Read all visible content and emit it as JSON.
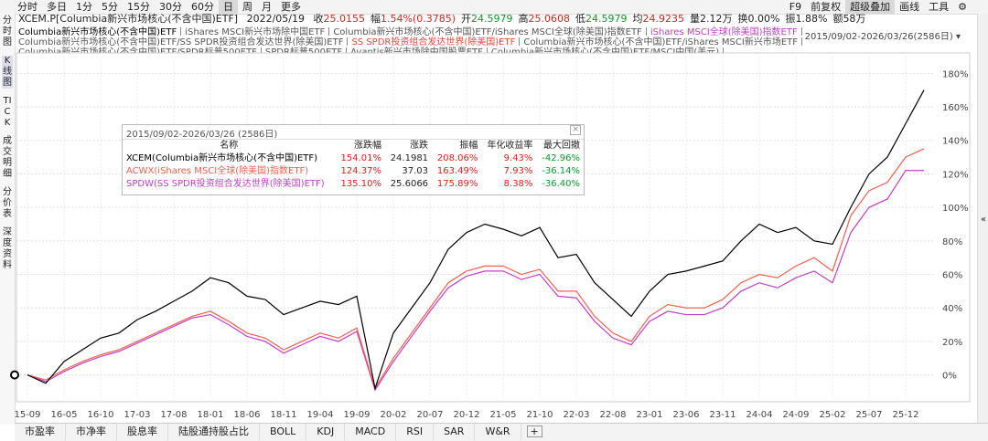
{
  "toolbar": {
    "periods": [
      "分时",
      "多日",
      "1分",
      "5分",
      "15分",
      "30分",
      "60分",
      "日",
      "周",
      "月",
      "更多"
    ],
    "active": 7,
    "tools": [
      "F9",
      "前复权",
      "超级叠加",
      "画线",
      "工具"
    ],
    "tools_active": 2
  },
  "sidebar": [
    "分时图",
    "K线图",
    "TICK",
    "成交明细",
    "分价表",
    "深度资料"
  ],
  "sidebar_active": 1,
  "quote": {
    "code": "XCEM.P[Columbia新兴市场核心(不含中国)ETF]",
    "date": "2022/05/19",
    "fields": [
      {
        "label": "收",
        "value": "25.0155",
        "tone": "up"
      },
      {
        "label": "幅",
        "value": "1.54%(0.3785)",
        "tone": "up"
      },
      {
        "label": "开",
        "value": "24.5979",
        "tone": "down"
      },
      {
        "label": "高",
        "value": "25.0608",
        "tone": "up"
      },
      {
        "label": "低",
        "value": "24.5979",
        "tone": "down"
      },
      {
        "label": "均",
        "value": "24.9235",
        "tone": "up"
      },
      {
        "label": "量",
        "value": "2.12万",
        "tone": "flat"
      },
      {
        "label": "换",
        "value": "0.00%",
        "tone": "flat"
      },
      {
        "label": "振",
        "value": "1.88%",
        "tone": "flat"
      },
      {
        "label": "额",
        "value": "58万",
        "tone": "flat"
      }
    ]
  },
  "overlay_lines": [
    [
      {
        "text": "Columbia新兴市场核心(不含中国)ETF",
        "color": "#000000"
      },
      {
        "text": "iShares MSCI新兴市场除中国ETF",
        "color": "#555555"
      },
      {
        "text": "Columbia新兴市场核心(不含中国)ETF/iShares MSCI全球(除美国)指数ETF",
        "color": "#555555"
      },
      {
        "text": "iShares MSCI全球(除美国)指数ETF",
        "color": "#c040c0"
      }
    ],
    [
      {
        "text": "Columbia新兴市场核心(不含中国)ETF/SS SPDR投资组合发达世界(除美国)ETF",
        "color": "#555555"
      },
      {
        "text": "SS SPDR投资组合发达世界(除美国)ETF",
        "color": "#e8453c"
      },
      {
        "text": "Columbia新兴市场核心(不含中国)ETF/iShares MSCI新兴市场ETF",
        "color": "#555555"
      }
    ],
    [
      {
        "text": "Columbia新兴市场核心(不含中国)ETF/SPDR标普500ETF",
        "color": "#555555"
      },
      {
        "text": "SPDR标普500ETF",
        "color": "#555555"
      },
      {
        "text": "Avantis新兴市场除中国股票ETF",
        "color": "#555555"
      },
      {
        "text": "Columbia新兴市场核心(不含中国)ETF/MSCI中国(美元)",
        "color": "#555555"
      }
    ]
  ],
  "range_label": "2015/09/02-2026/03/26(2586日)",
  "chart_data": {
    "type": "line",
    "categories": [
      "15-09",
      null,
      "16-05",
      null,
      "16-10",
      null,
      "17-03",
      null,
      "17-08",
      null,
      "18-01",
      null,
      "18-06",
      null,
      "18-11",
      null,
      "19-04",
      null,
      "19-09",
      null,
      "20-02",
      null,
      "20-07",
      null,
      "20-12",
      null,
      "21-05",
      null,
      "21-10",
      null,
      "22-03",
      null,
      "22-08",
      null,
      "23-01",
      null,
      "23-06",
      null,
      "23-11",
      null,
      "24-04",
      null,
      "24-09",
      null,
      "25-02",
      null,
      "25-07",
      null,
      "25-12",
      null
    ],
    "series": [
      {
        "name": "XCEM(Columbia新兴市场核心(不含中国)ETF)",
        "color": "#000000",
        "values": [
          0,
          -5,
          8,
          15,
          22,
          25,
          33,
          38,
          44,
          50,
          58,
          55,
          47,
          45,
          36,
          40,
          44,
          42,
          47,
          -8,
          25,
          40,
          55,
          75,
          85,
          90,
          87,
          83,
          88,
          70,
          72,
          55,
          45,
          35,
          50,
          60,
          62,
          65,
          68,
          80,
          90,
          85,
          88,
          80,
          78,
          100,
          120,
          130,
          150,
          170
        ]
      },
      {
        "name": "ACWX(iShares MSCI全球(除美国)指数ETF)",
        "color": "#f06050",
        "values": [
          0,
          -3,
          3,
          8,
          12,
          15,
          20,
          25,
          30,
          35,
          38,
          32,
          25,
          22,
          15,
          20,
          25,
          22,
          28,
          -8,
          10,
          25,
          40,
          55,
          62,
          65,
          65,
          60,
          63,
          50,
          50,
          35,
          25,
          20,
          35,
          42,
          40,
          40,
          45,
          55,
          60,
          58,
          65,
          70,
          62,
          95,
          110,
          115,
          130,
          135
        ]
      },
      {
        "name": "SPDW(SS SPDR投资组合发达世界(除美国)ETF)",
        "color": "#c040c8",
        "values": [
          0,
          -4,
          2,
          7,
          11,
          14,
          19,
          24,
          29,
          34,
          36,
          30,
          23,
          20,
          13,
          18,
          23,
          20,
          26,
          -9,
          8,
          23,
          38,
          52,
          59,
          62,
          62,
          57,
          60,
          47,
          46,
          32,
          22,
          18,
          32,
          38,
          36,
          36,
          40,
          50,
          55,
          52,
          58,
          62,
          55,
          85,
          100,
          105,
          122,
          122
        ]
      }
    ],
    "ylim": [
      -16,
      190
    ],
    "yticks": [
      {
        "value": 0,
        "label": "0%"
      },
      {
        "value": 20,
        "label": "20%"
      },
      {
        "value": 40,
        "label": "40%"
      },
      {
        "value": 60,
        "label": "60%"
      },
      {
        "value": 80,
        "label": "80%"
      },
      {
        "value": 100,
        "label": "100%"
      },
      {
        "value": 120,
        "label": "120%"
      },
      {
        "value": 140,
        "label": "140%"
      },
      {
        "value": 160,
        "label": "160%"
      },
      {
        "value": 180,
        "label": "180%"
      }
    ],
    "grid": true
  },
  "stats_table": {
    "title": "2015/09/02-2026/03/26 (2586日)",
    "headers": [
      "名称",
      "涨跌幅",
      "涨跌",
      "振幅",
      "年化收益率",
      "最大回撤"
    ],
    "rows": [
      [
        "154.01%",
        "24.1981",
        "208.06%",
        "9.43%",
        "-42.96%"
      ],
      [
        "124.37%",
        "37.03",
        "163.49%",
        "7.93%",
        "-36.14%"
      ],
      [
        "135.10%",
        "25.6066",
        "175.89%",
        "8.38%",
        "-36.40%"
      ]
    ]
  },
  "bottom_tabs": [
    "市盈率",
    "市净率",
    "股息率",
    "陆股通持股占比",
    "BOLL",
    "KDJ",
    "MACD",
    "RSI",
    "SAR",
    "W&R"
  ]
}
